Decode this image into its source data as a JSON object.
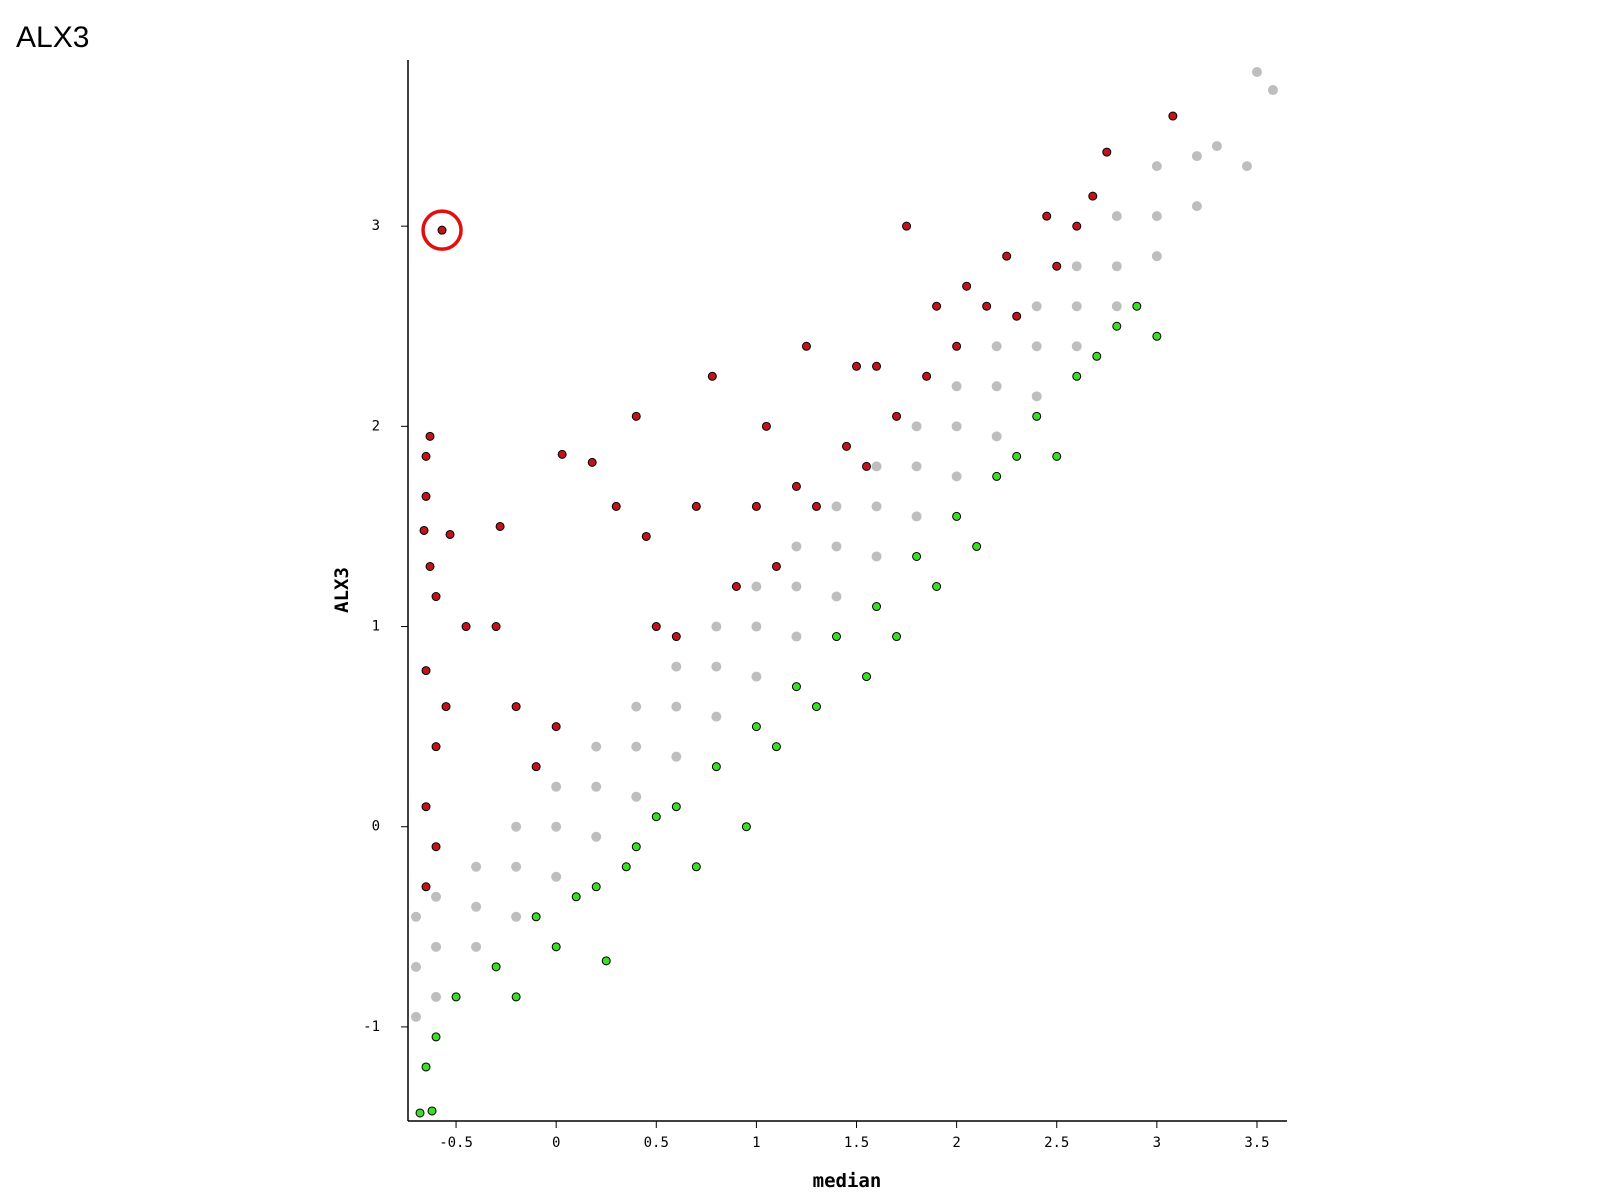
{
  "chart_data": {
    "type": "scatter",
    "title": "ALX3",
    "x_label": "median",
    "y_label": "ALX3",
    "xlim": [
      -0.74,
      3.65
    ],
    "ylim": [
      -1.47,
      3.83
    ],
    "xticks": [
      -0.5,
      0,
      0.5,
      1,
      1.5,
      2,
      2.5,
      3,
      3.5
    ],
    "yticks": [
      -1,
      0,
      1,
      2,
      3
    ],
    "series": [
      {
        "color": "#bebebe",
        "x": [
          -0.7,
          -0.7,
          -0.7,
          -0.6,
          -0.6,
          -0.6,
          -0.4,
          -0.4,
          -0.4,
          -0.2,
          -0.2,
          -0.2,
          0,
          0,
          0,
          0.2,
          0.2,
          0.2,
          0.4,
          0.4,
          0.4,
          0.6,
          0.6,
          0.6,
          0.8,
          0.8,
          0.8,
          1,
          1,
          1,
          1.2,
          1.2,
          1.2,
          1.4,
          1.4,
          1.4,
          1.6,
          1.6,
          1.6,
          1.8,
          1.8,
          1.8,
          2,
          2,
          2,
          2.2,
          2.2,
          2.2,
          2.4,
          2.4,
          2.4,
          2.6,
          2.6,
          2.6,
          2.8,
          2.8,
          2.8,
          3,
          3,
          3,
          3.2,
          3.2,
          3.3,
          3.45,
          3.5,
          3.58
        ],
        "y": [
          -0.95,
          -0.7,
          -0.45,
          -0.85,
          -0.6,
          -0.35,
          -0.6,
          -0.4,
          -0.2,
          -0.45,
          -0.2,
          0,
          -0.25,
          0,
          0.2,
          -0.05,
          0.2,
          0.4,
          0.15,
          0.4,
          0.6,
          0.35,
          0.6,
          0.8,
          0.55,
          0.8,
          1,
          0.75,
          1,
          1.2,
          0.95,
          1.2,
          1.4,
          1.15,
          1.4,
          1.6,
          1.35,
          1.6,
          1.8,
          1.55,
          1.8,
          2,
          1.75,
          2,
          2.2,
          1.95,
          2.2,
          2.4,
          2.15,
          2.4,
          2.6,
          2.4,
          2.6,
          2.8,
          2.6,
          2.8,
          3.05,
          2.85,
          3.05,
          3.3,
          3.1,
          3.35,
          3.4,
          3.3,
          3.77,
          3.68
        ]
      },
      {
        "color": "#c0141c",
        "x": [
          -0.65,
          -0.63,
          -0.65,
          -0.66,
          -0.63,
          -0.6,
          -0.65,
          -0.6,
          -0.65,
          -0.6,
          -0.65,
          -0.55,
          -0.53,
          -0.45,
          -0.28,
          -0.3,
          -0.2,
          -0.1,
          0,
          0.03,
          0.18,
          0.3,
          0.4,
          0.45,
          0.5,
          0.6,
          0.7,
          0.78,
          0.9,
          1,
          1.05,
          1.1,
          1.2,
          1.25,
          1.3,
          1.45,
          1.5,
          1.55,
          1.6,
          1.7,
          1.75,
          1.85,
          1.9,
          2,
          2.05,
          2.15,
          2.25,
          2.3,
          2.45,
          2.5,
          2.6,
          2.68,
          2.75,
          3.08,
          -0.57
        ],
        "y": [
          1.85,
          1.95,
          1.65,
          1.48,
          1.3,
          1.15,
          0.78,
          0.4,
          0.1,
          -0.1,
          -0.3,
          0.6,
          1.46,
          1,
          1.5,
          1,
          0.6,
          0.3,
          0.5,
          1.86,
          1.82,
          1.6,
          2.05,
          1.45,
          1,
          0.95,
          1.6,
          2.25,
          1.2,
          1.6,
          2,
          1.3,
          1.7,
          2.4,
          1.6,
          1.9,
          2.3,
          1.8,
          2.3,
          2.05,
          3,
          2.25,
          2.6,
          2.4,
          2.7,
          2.6,
          2.85,
          2.55,
          3.05,
          2.8,
          3,
          3.15,
          3.37,
          3.55,
          2.98
        ]
      },
      {
        "color": "#3ddc28",
        "x": [
          -0.68,
          -0.62,
          -0.65,
          -0.6,
          -0.5,
          -0.3,
          -0.2,
          -0.1,
          0,
          0.1,
          0.2,
          0.25,
          0.35,
          0.4,
          0.5,
          0.6,
          0.7,
          0.8,
          0.95,
          1,
          1.1,
          1.2,
          1.3,
          1.4,
          1.55,
          1.6,
          1.7,
          1.8,
          1.9,
          2,
          2.1,
          2.2,
          2.3,
          2.4,
          2.5,
          2.6,
          2.7,
          2.8,
          2.9,
          3
        ],
        "y": [
          -1.43,
          -1.42,
          -1.2,
          -1.05,
          -0.85,
          -0.7,
          -0.85,
          -0.45,
          -0.6,
          -0.35,
          -0.3,
          -0.67,
          -0.2,
          -0.1,
          0.05,
          0.1,
          -0.2,
          0.3,
          0,
          0.5,
          0.4,
          0.7,
          0.6,
          0.95,
          0.75,
          1.1,
          0.95,
          1.35,
          1.2,
          1.55,
          1.4,
          1.75,
          1.85,
          2.05,
          1.85,
          2.25,
          2.35,
          2.5,
          2.6,
          2.45
        ]
      }
    ]
  }
}
